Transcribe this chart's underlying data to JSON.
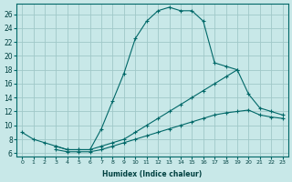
{
  "xlabel": "Humidex (Indice chaleur)",
  "background_color": "#c8e8e8",
  "grid_color": "#a0c8c8",
  "line_color": "#006868",
  "xlim": [
    -0.5,
    23.5
  ],
  "ylim": [
    5.5,
    27.5
  ],
  "xticks": [
    0,
    1,
    2,
    3,
    4,
    5,
    6,
    7,
    8,
    9,
    10,
    11,
    12,
    13,
    14,
    15,
    16,
    17,
    18,
    19,
    20,
    21,
    22,
    23
  ],
  "yticks": [
    6,
    8,
    10,
    12,
    14,
    16,
    18,
    20,
    22,
    24,
    26
  ],
  "line1_x": [
    0,
    1,
    2,
    3,
    4,
    5,
    6,
    7,
    8,
    9,
    10,
    11,
    12,
    13,
    14,
    15,
    16,
    17,
    18,
    19
  ],
  "line1_y": [
    9,
    8,
    7.5,
    7,
    6.5,
    6.5,
    6.5,
    9.5,
    13.5,
    17.5,
    22.5,
    25,
    26.5,
    27,
    26.5,
    26.5,
    25,
    19,
    18.5,
    18
  ],
  "line2_x": [
    3,
    4,
    5,
    6,
    7,
    8,
    9,
    10,
    11,
    12,
    13,
    14,
    15,
    16,
    17,
    18,
    19,
    20,
    21,
    22,
    23
  ],
  "line2_y": [
    7,
    6.5,
    6.5,
    6.5,
    7,
    7.5,
    8,
    9,
    10,
    11,
    12,
    13,
    14,
    15,
    16,
    17,
    18,
    14.5,
    12.5,
    12,
    11.5
  ],
  "line3_x": [
    3,
    4,
    5,
    6,
    7,
    8,
    9,
    10,
    11,
    12,
    13,
    14,
    15,
    16,
    17,
    18,
    19,
    20,
    21,
    22,
    23
  ],
  "line3_y": [
    6.5,
    6.2,
    6.2,
    6.2,
    6.5,
    7,
    7.5,
    8,
    8.5,
    9,
    9.5,
    10,
    10.5,
    11,
    11.5,
    11.8,
    12,
    12.2,
    11.5,
    11.2,
    11
  ]
}
